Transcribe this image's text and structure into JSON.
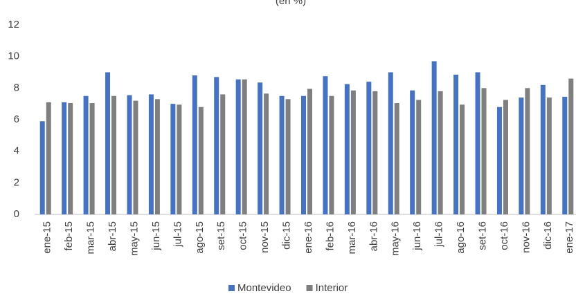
{
  "chart_data": {
    "type": "bar",
    "title": "(en %)",
    "categories": [
      "ene-15",
      "feb-15",
      "mar-15",
      "abr-15",
      "may-15",
      "jun-15",
      "jul-15",
      "ago-15",
      "set-15",
      "oct-15",
      "nov-15",
      "dic-15",
      "ene-16",
      "feb-16",
      "mar-16",
      "abr-16",
      "may-16",
      "jun-16",
      "jul-16",
      "ago-16",
      "set-16",
      "oct-16",
      "nov-16",
      "dic-16",
      "ene-17"
    ],
    "series": [
      {
        "name": "Montevideo",
        "color": "#4472c4",
        "values": [
          5.9,
          7.1,
          7.5,
          9.0,
          7.55,
          7.6,
          7.0,
          8.8,
          8.7,
          8.55,
          8.35,
          7.5,
          7.5,
          8.75,
          8.25,
          8.4,
          9.0,
          7.85,
          9.7,
          8.85,
          9.0,
          6.8,
          7.4,
          8.2,
          7.45
        ]
      },
      {
        "name": "Interior",
        "color": "#7f7f7f",
        "values": [
          7.1,
          7.05,
          7.05,
          7.5,
          7.2,
          7.3,
          6.95,
          6.8,
          7.6,
          8.55,
          7.65,
          7.3,
          7.95,
          7.5,
          7.85,
          7.8,
          7.05,
          7.25,
          7.8,
          6.95,
          8.0,
          7.25,
          8.0,
          7.4,
          8.6
        ]
      }
    ],
    "ylim": [
      0,
      12
    ],
    "yticks": [
      0,
      2,
      4,
      6,
      8,
      10,
      12
    ],
    "grid": false,
    "legend": "bottom"
  }
}
